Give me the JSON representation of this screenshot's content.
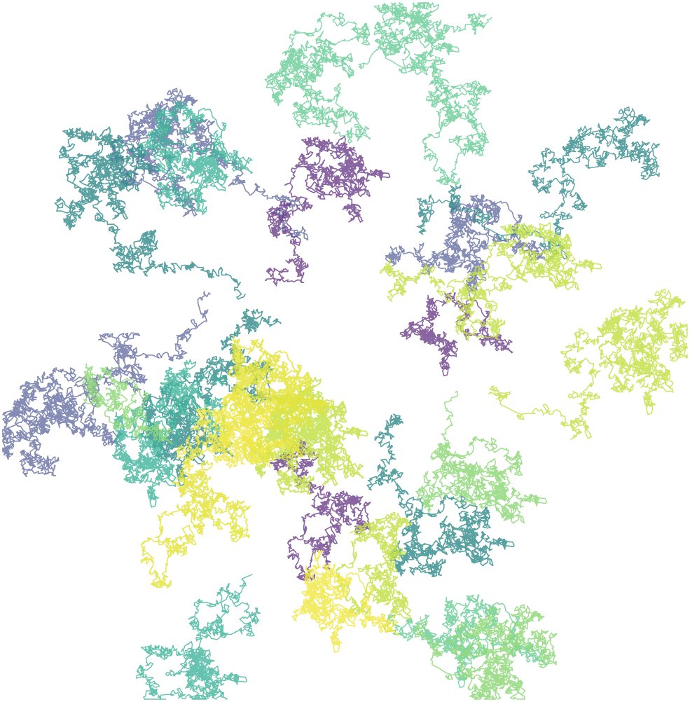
{
  "artwork": {
    "kind": "random walk cluster",
    "palette": {
      "dark_purple": "#6a3d8a",
      "slate_purple": "#6e77a8",
      "teal": "#2f8a8a",
      "sea_green": "#3fb39a",
      "mint": "#6fcf9b",
      "light_green": "#8fd87a",
      "yellow_green": "#c3e04a",
      "yellow": "#e3e33a",
      "bright_yellow": "#f0e84a"
    }
  }
}
